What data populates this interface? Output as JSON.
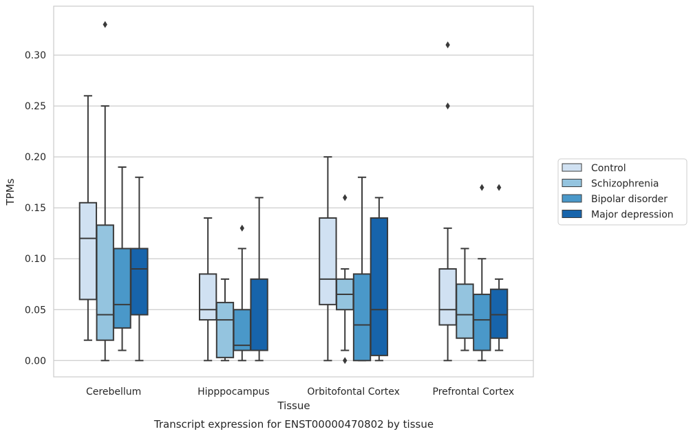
{
  "chart_data": {
    "type": "boxplot",
    "title": "",
    "caption": "Transcript expression for ENST00000470802 by tissue",
    "xlabel": "Tissue",
    "ylabel": "TPMs",
    "ylim": [
      -0.016,
      0.348
    ],
    "yticks": [
      0.0,
      0.05,
      0.1,
      0.15,
      0.2,
      0.25,
      0.3
    ],
    "ytick_labels": [
      "0.00",
      "0.05",
      "0.10",
      "0.15",
      "0.20",
      "0.25",
      "0.30"
    ],
    "grid": "horizontal",
    "legend_position": "right",
    "categories": [
      "Cerebellum",
      "Hipppocampus",
      "Orbitofontal Cortex",
      "Prefrontal Cortex"
    ],
    "series": [
      {
        "name": "Control",
        "color": "#d0e1f2",
        "boxes": [
          {
            "whislo": 0.02,
            "q1": 0.06,
            "med": 0.12,
            "q3": 0.155,
            "whishi": 0.26,
            "fliers": []
          },
          {
            "whislo": 0.0,
            "q1": 0.04,
            "med": 0.05,
            "q3": 0.085,
            "whishi": 0.14,
            "fliers": []
          },
          {
            "whislo": 0.0,
            "q1": 0.055,
            "med": 0.08,
            "q3": 0.14,
            "whishi": 0.2,
            "fliers": []
          },
          {
            "whislo": 0.0,
            "q1": 0.035,
            "med": 0.05,
            "q3": 0.09,
            "whishi": 0.13,
            "fliers": [
              0.25,
              0.31
            ]
          }
        ]
      },
      {
        "name": "Schizophrenia",
        "color": "#94c4df",
        "boxes": [
          {
            "whislo": 0.0,
            "q1": 0.02,
            "med": 0.045,
            "q3": 0.133,
            "whishi": 0.25,
            "fliers": [
              0.33
            ]
          },
          {
            "whislo": 0.0,
            "q1": 0.003,
            "med": 0.04,
            "q3": 0.057,
            "whishi": 0.08,
            "fliers": []
          },
          {
            "whislo": 0.01,
            "q1": 0.05,
            "med": 0.065,
            "q3": 0.08,
            "whishi": 0.09,
            "fliers": [
              0.16,
              0.0
            ]
          },
          {
            "whislo": 0.01,
            "q1": 0.022,
            "med": 0.045,
            "q3": 0.075,
            "whishi": 0.11,
            "fliers": []
          }
        ]
      },
      {
        "name": "Bipolar disorder",
        "color": "#4a98c9",
        "boxes": [
          {
            "whislo": 0.01,
            "q1": 0.032,
            "med": 0.055,
            "q3": 0.11,
            "whishi": 0.19,
            "fliers": []
          },
          {
            "whislo": 0.0,
            "q1": 0.01,
            "med": 0.015,
            "q3": 0.05,
            "whishi": 0.11,
            "fliers": [
              0.13
            ]
          },
          {
            "whislo": 0.0,
            "q1": 0.0,
            "med": 0.035,
            "q3": 0.085,
            "whishi": 0.18,
            "fliers": []
          },
          {
            "whislo": 0.0,
            "q1": 0.01,
            "med": 0.04,
            "q3": 0.065,
            "whishi": 0.1,
            "fliers": [
              0.17
            ]
          }
        ]
      },
      {
        "name": "Major depression",
        "color": "#1764ab",
        "boxes": [
          {
            "whislo": 0.0,
            "q1": 0.045,
            "med": 0.09,
            "q3": 0.11,
            "whishi": 0.18,
            "fliers": []
          },
          {
            "whislo": 0.0,
            "q1": 0.01,
            "med": 0.01,
            "q3": 0.08,
            "whishi": 0.16,
            "fliers": []
          },
          {
            "whislo": 0.0,
            "q1": 0.005,
            "med": 0.05,
            "q3": 0.14,
            "whishi": 0.16,
            "fliers": []
          },
          {
            "whislo": 0.01,
            "q1": 0.022,
            "med": 0.045,
            "q3": 0.07,
            "whishi": 0.08,
            "fliers": [
              0.17
            ]
          }
        ]
      }
    ]
  }
}
